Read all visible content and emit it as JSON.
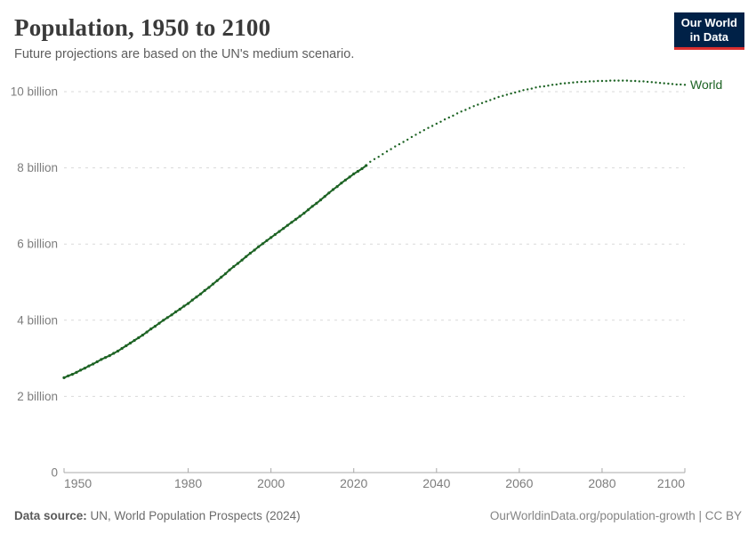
{
  "header": {
    "title": "Population, 1950 to 2100",
    "subtitle": "Future projections are based on the UN's medium scenario."
  },
  "logo": {
    "line1": "Our World",
    "line2": "in Data",
    "bg_color": "#002147",
    "accent_color": "#dc2f2f"
  },
  "chart_data": {
    "type": "line",
    "title": "Population, 1950 to 2100",
    "series_label": "World",
    "color": "#1d6324",
    "grid": true,
    "x_range": [
      1950,
      2100
    ],
    "ylim": [
      0,
      10
    ],
    "unit": "billion",
    "x_ticks": [
      1950,
      1980,
      2000,
      2020,
      2040,
      2060,
      2080,
      2100
    ],
    "y_ticks": [
      {
        "value": 0,
        "label": "0"
      },
      {
        "value": 2,
        "label": "2 billion"
      },
      {
        "value": 4,
        "label": "4 billion"
      },
      {
        "value": 6,
        "label": "6 billion"
      },
      {
        "value": 8,
        "label": "8 billion"
      },
      {
        "value": 10,
        "label": "10 billion"
      }
    ],
    "observed": {
      "start_year": 1950,
      "step": 1,
      "values": [
        2.49,
        2.54,
        2.58,
        2.63,
        2.69,
        2.74,
        2.8,
        2.85,
        2.91,
        2.97,
        3.02,
        3.07,
        3.13,
        3.19,
        3.26,
        3.33,
        3.4,
        3.47,
        3.54,
        3.61,
        3.69,
        3.77,
        3.84,
        3.92,
        4.0,
        4.07,
        4.14,
        4.22,
        4.29,
        4.37,
        4.44,
        4.53,
        4.61,
        4.69,
        4.78,
        4.86,
        4.95,
        5.04,
        5.13,
        5.22,
        5.32,
        5.41,
        5.49,
        5.58,
        5.67,
        5.76,
        5.84,
        5.93,
        6.01,
        6.09,
        6.17,
        6.25,
        6.33,
        6.41,
        6.49,
        6.57,
        6.65,
        6.73,
        6.81,
        6.9,
        6.99,
        7.07,
        7.16,
        7.25,
        7.34,
        7.43,
        7.51,
        7.6,
        7.68,
        7.76,
        7.84,
        7.91,
        7.98,
        8.06
      ]
    },
    "projected": {
      "start_year": 2024,
      "step": 1,
      "values": [
        8.16,
        8.23,
        8.29,
        8.36,
        8.43,
        8.49,
        8.56,
        8.62,
        8.68,
        8.74,
        8.81,
        8.87,
        8.93,
        8.99,
        9.05,
        9.1,
        9.16,
        9.21,
        9.27,
        9.32,
        9.37,
        9.43,
        9.48,
        9.52,
        9.57,
        9.62,
        9.66,
        9.7,
        9.74,
        9.78,
        9.82,
        9.86,
        9.89,
        9.92,
        9.95,
        9.98,
        10.01,
        10.04,
        10.06,
        10.08,
        10.11,
        10.13,
        10.14,
        10.16,
        10.18,
        10.19,
        10.21,
        10.22,
        10.23,
        10.24,
        10.25,
        10.26,
        10.26,
        10.27,
        10.27,
        10.28,
        10.28,
        10.28,
        10.29,
        10.29,
        10.29,
        10.29,
        10.29,
        10.28,
        10.28,
        10.27,
        10.27,
        10.26,
        10.25,
        10.24,
        10.23,
        10.22,
        10.21,
        10.2,
        10.19,
        10.19,
        10.18
      ]
    }
  },
  "footer": {
    "source_label": "Data source:",
    "source_value": " UN, World Population Prospects (2024)",
    "link": "OurWorldinData.org/population-growth | CC BY"
  }
}
